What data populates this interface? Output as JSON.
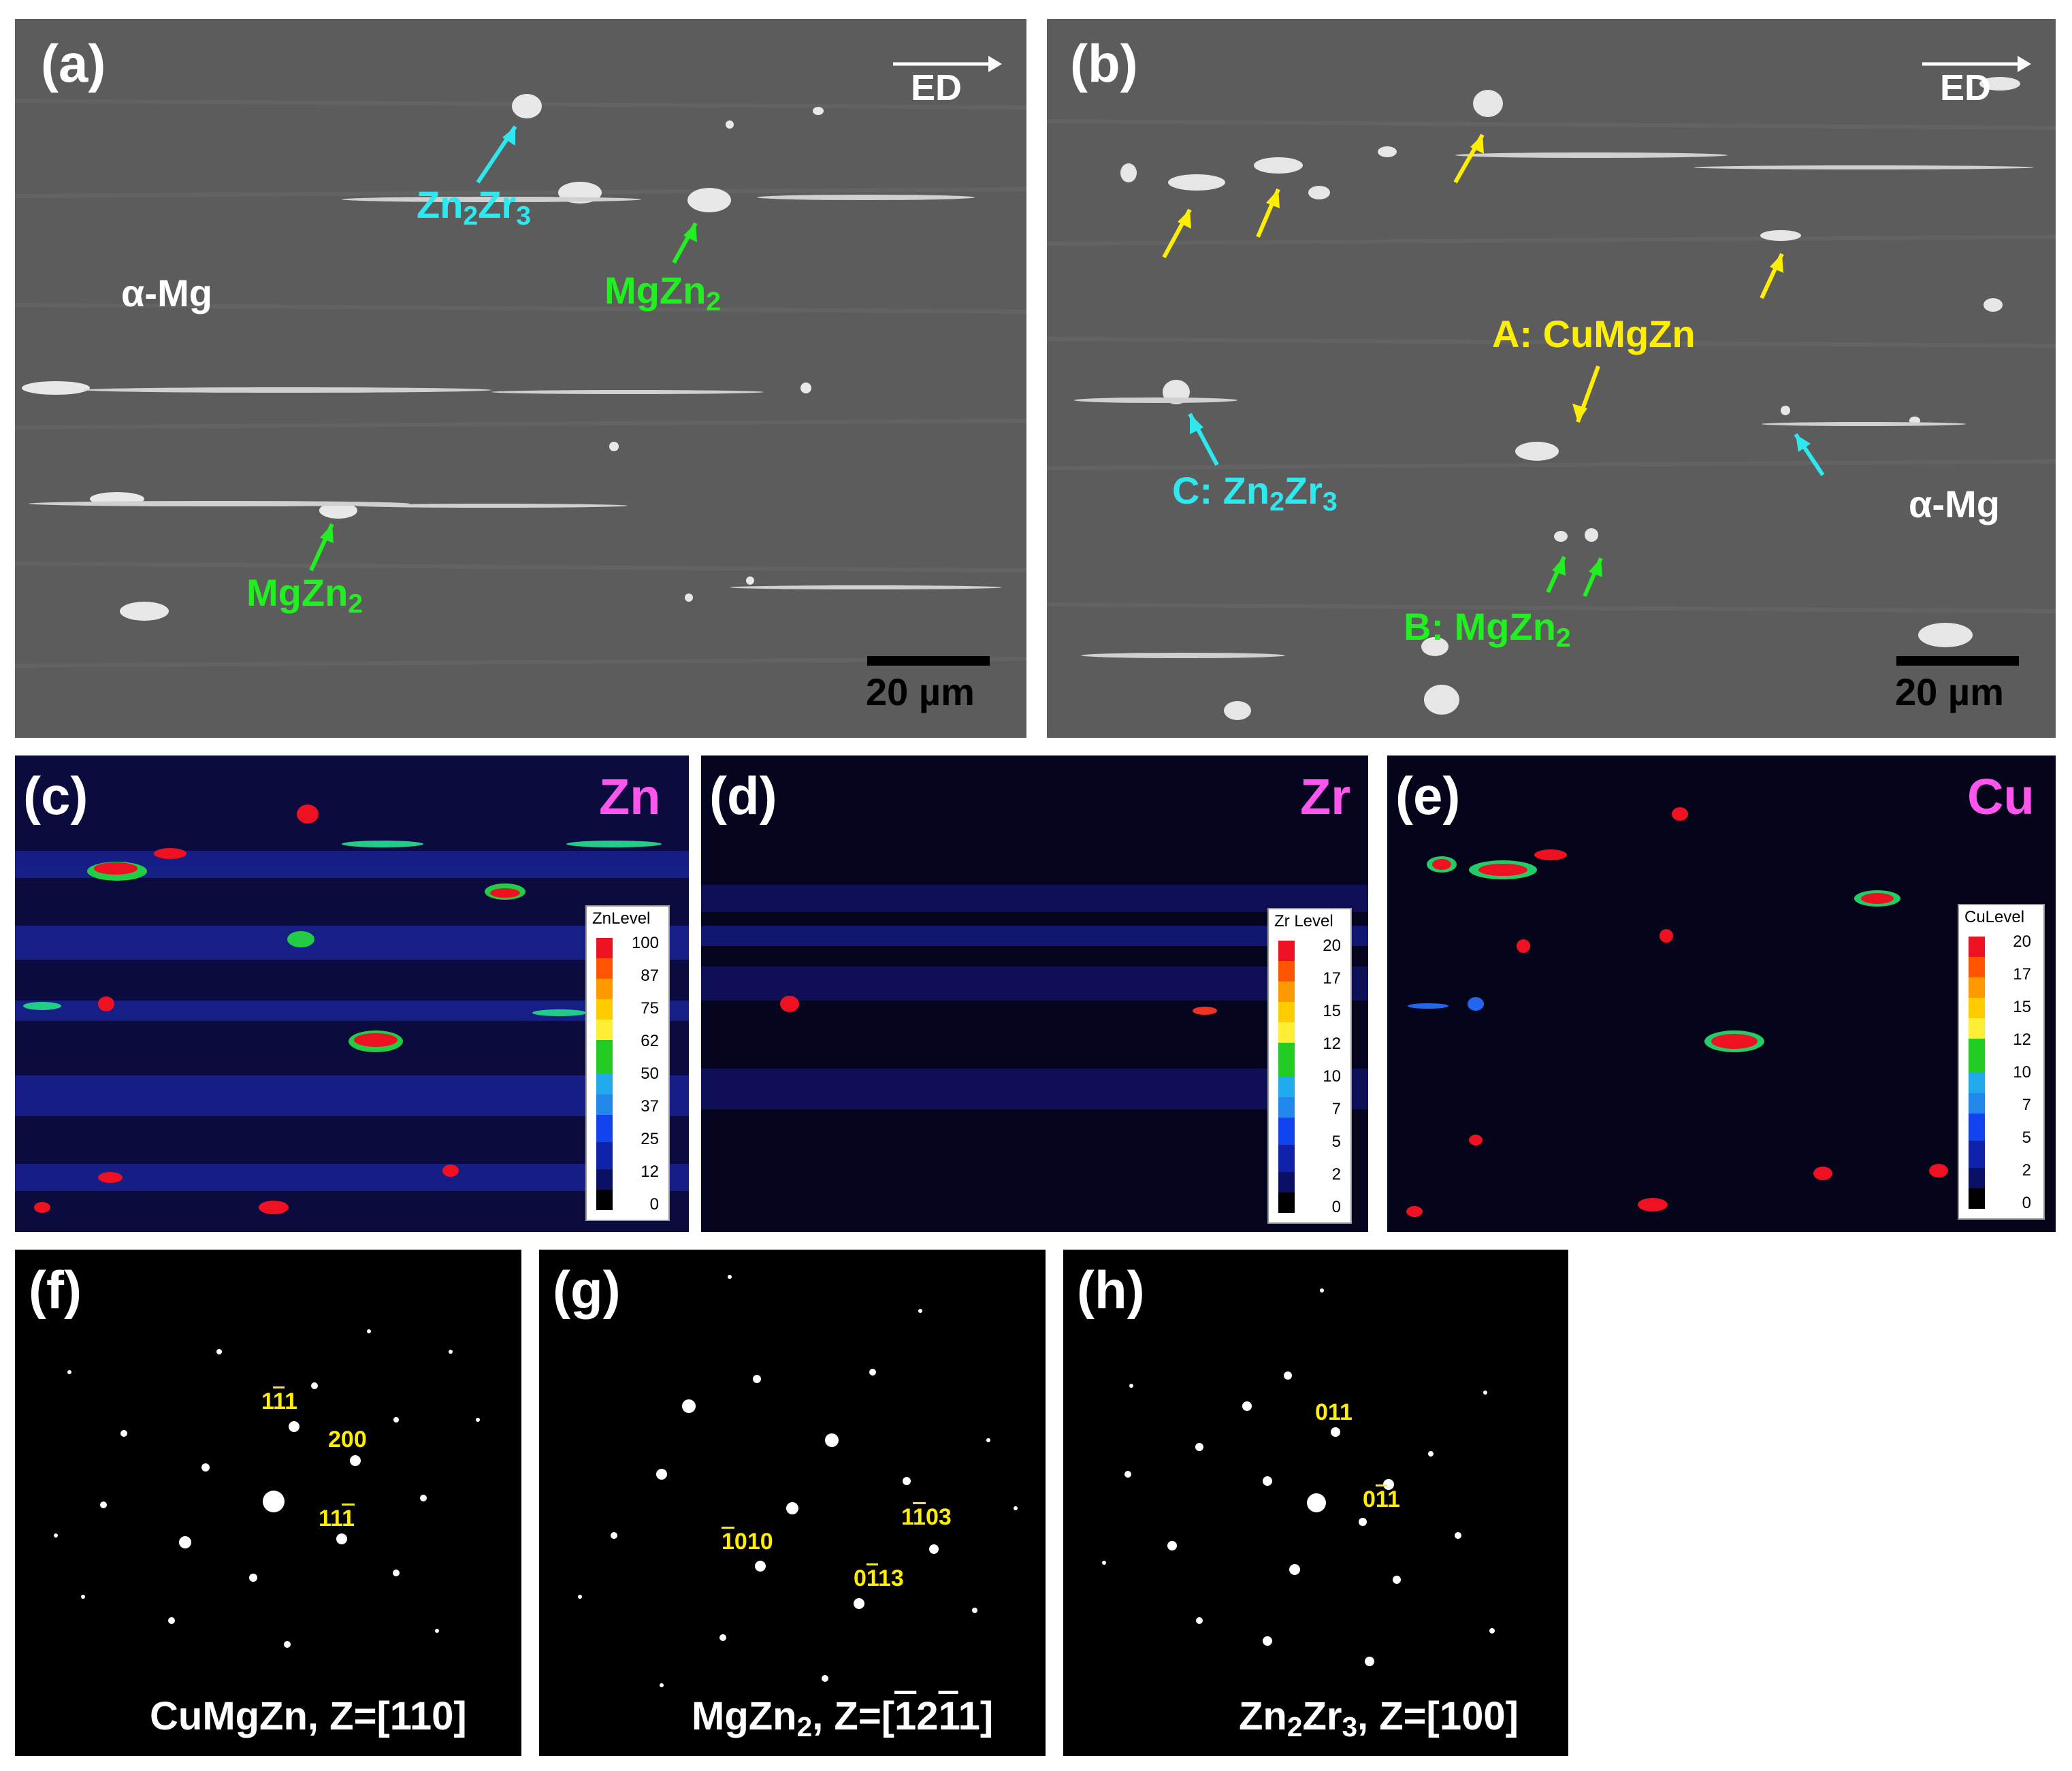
{
  "panels": {
    "a": {
      "label": "(a)",
      "direction": "ED",
      "scale_bar": "20 µm",
      "matrix": "α-Mg",
      "phases": {
        "zn2zr3": {
          "main": "Zn",
          "s1": "2",
          "mid": "Zr",
          "s2": "3"
        },
        "mgzn2_upper": {
          "main": "MgZn",
          "s1": "2"
        },
        "mgzn2_lower": {
          "main": "MgZn",
          "s1": "2"
        }
      }
    },
    "b": {
      "label": "(b)",
      "direction": "ED",
      "scale_bar": "20 µm",
      "matrix": "α-Mg",
      "phase_a": "A: CuMgZn",
      "phase_b": {
        "main": "B: MgZn",
        "s1": "2"
      },
      "phase_c": {
        "main": "C: Zn",
        "s1": "2",
        "mid": "Zr",
        "s2": "3"
      }
    },
    "c": {
      "label": "(c)",
      "element": "Zn",
      "legend_title": "ZnLevel",
      "ticks": [
        "100",
        "87",
        "75",
        "62",
        "50",
        "37",
        "25",
        "12",
        "0"
      ]
    },
    "d": {
      "label": "(d)",
      "element": "Zr",
      "legend_title": "Zr Level",
      "ticks": [
        "20",
        "17",
        "15",
        "12",
        "10",
        "7",
        "5",
        "2",
        "0"
      ]
    },
    "e": {
      "label": "(e)",
      "element": "Cu",
      "legend_title": "CuLevel",
      "ticks": [
        "20",
        "17",
        "15",
        "12",
        "10",
        "7",
        "5",
        "2",
        "0"
      ]
    },
    "f": {
      "label": "(f)",
      "caption": "CuMgZn, Z=[110]",
      "indices": {
        "i1": {
          "a": "1",
          "bar": "1",
          "b": "1"
        },
        "i2": "200",
        "i3": {
          "a": "11",
          "bar": "1"
        }
      }
    },
    "g": {
      "label": "(g)",
      "caption": {
        "pre": "MgZn",
        "sub": "2",
        "post1": ", Z=[",
        "bar1": "1",
        "mid": "2",
        "bar2": "1",
        "post2": "1]"
      },
      "indices": {
        "i1": {
          "a": "1",
          "bar": "1",
          "b": "03"
        },
        "i2": {
          "bar": "1",
          "b": "010"
        },
        "i3": {
          "a": "0",
          "bar": "1",
          "b": "13"
        }
      }
    },
    "h": {
      "label": "(h)",
      "caption": {
        "pre": "Zn",
        "sub1": "2",
        "mid": "Zr",
        "sub2": "3",
        "post": ", Z=[100]"
      },
      "indices": {
        "i1": "011",
        "i2": {
          "a": "0",
          "bar": "1",
          "b": "1"
        }
      }
    }
  },
  "colors": {
    "sem_background": "#5a5a5a",
    "cyan_label": "#2ee8f0",
    "green_label": "#22ee22",
    "yellow_label": "#ffee00",
    "map_background": "#0a0a40"
  }
}
